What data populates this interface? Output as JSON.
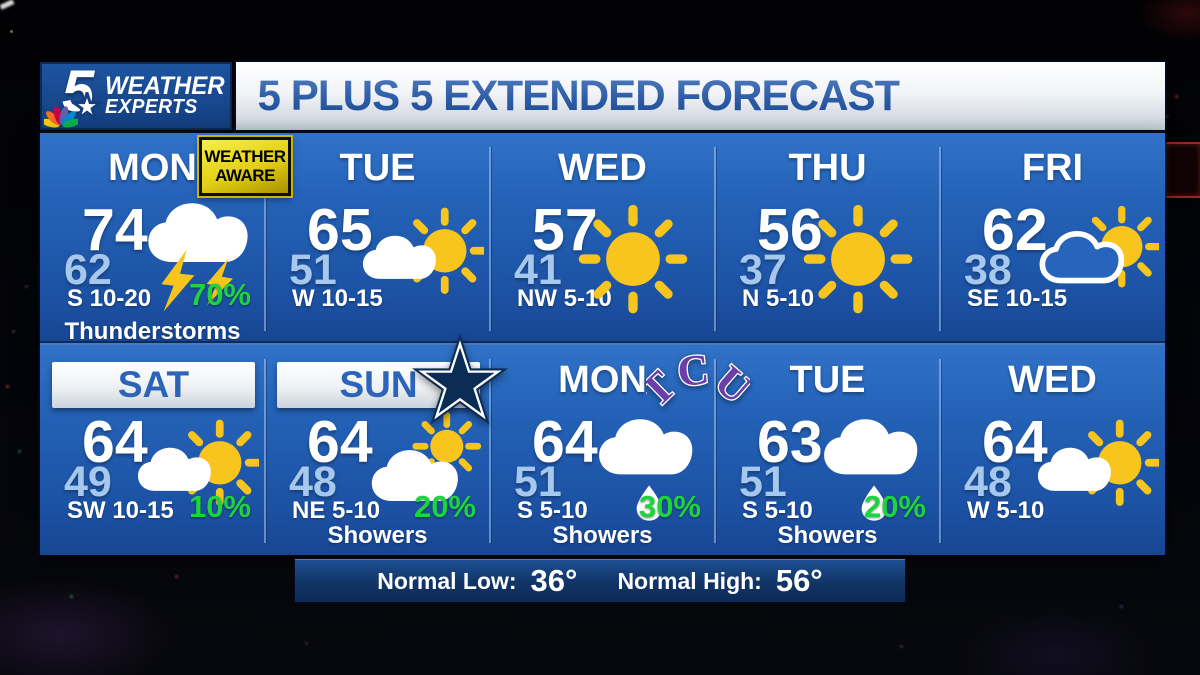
{
  "header": {
    "logo": {
      "channel": "5",
      "line1": "WEATHER",
      "line2": "EXPERTS"
    },
    "title": "5 PLUS 5 EXTENDED FORECAST"
  },
  "alert_badge": {
    "line1": "WEATHER",
    "line2": "AWARE"
  },
  "forecast": {
    "days": [
      {
        "label": "MON",
        "high": "74",
        "low": "62",
        "wind": "S 10-20",
        "condition": "Thunderstorms",
        "precip": "70%",
        "icon": "thunderstorms",
        "badge": "weather-aware"
      },
      {
        "label": "TUE",
        "high": "65",
        "low": "51",
        "wind": "W 10-15",
        "icon": "partly-cloudy"
      },
      {
        "label": "WED",
        "high": "57",
        "low": "41",
        "wind": "NW 5-10",
        "icon": "sunny"
      },
      {
        "label": "THU",
        "high": "56",
        "low": "37",
        "wind": "N 5-10",
        "icon": "sunny"
      },
      {
        "label": "FRI",
        "high": "62",
        "low": "38",
        "wind": "SE 10-15",
        "icon": "mostly-sunny"
      },
      {
        "label": "SAT",
        "high": "64",
        "low": "49",
        "wind": "SW 10-15",
        "precip": "10%",
        "icon": "partly-cloudy",
        "highlight": true
      },
      {
        "label": "SUN",
        "high": "64",
        "low": "48",
        "wind": "NE 5-10",
        "condition": "Showers",
        "precip": "20%",
        "icon": "sun-behind-cloud",
        "highlight": true,
        "badge": "cowboys-star"
      },
      {
        "label": "MON",
        "high": "64",
        "low": "51",
        "wind": "S 5-10",
        "condition": "Showers",
        "precip": "30%",
        "icon": "rain-shower",
        "badge": "tcu-logo"
      },
      {
        "label": "TUE",
        "high": "63",
        "low": "51",
        "wind": "S 5-10",
        "condition": "Showers",
        "precip": "20%",
        "icon": "rain-shower"
      },
      {
        "label": "WED",
        "high": "64",
        "low": "48",
        "wind": "W 5-10",
        "icon": "partly-cloudy"
      }
    ]
  },
  "overlays": {
    "tcu": "TCU"
  },
  "footer": {
    "normal_low_label": "Normal Low:",
    "normal_low_value": "36°",
    "normal_high_label": "Normal High:",
    "normal_high_value": "56°"
  },
  "colors": {
    "panel_blue": "#2463b8",
    "low_temp_blue": "#a5c8ec",
    "precip_green": "#1ed43e",
    "sun_yellow": "#f7c51e",
    "alert_yellow": "#e3cf14",
    "title_blue": "#2c5ca6",
    "cowboys_navy": "#0b2c55",
    "tcu_purple": "#6b3fa8"
  }
}
